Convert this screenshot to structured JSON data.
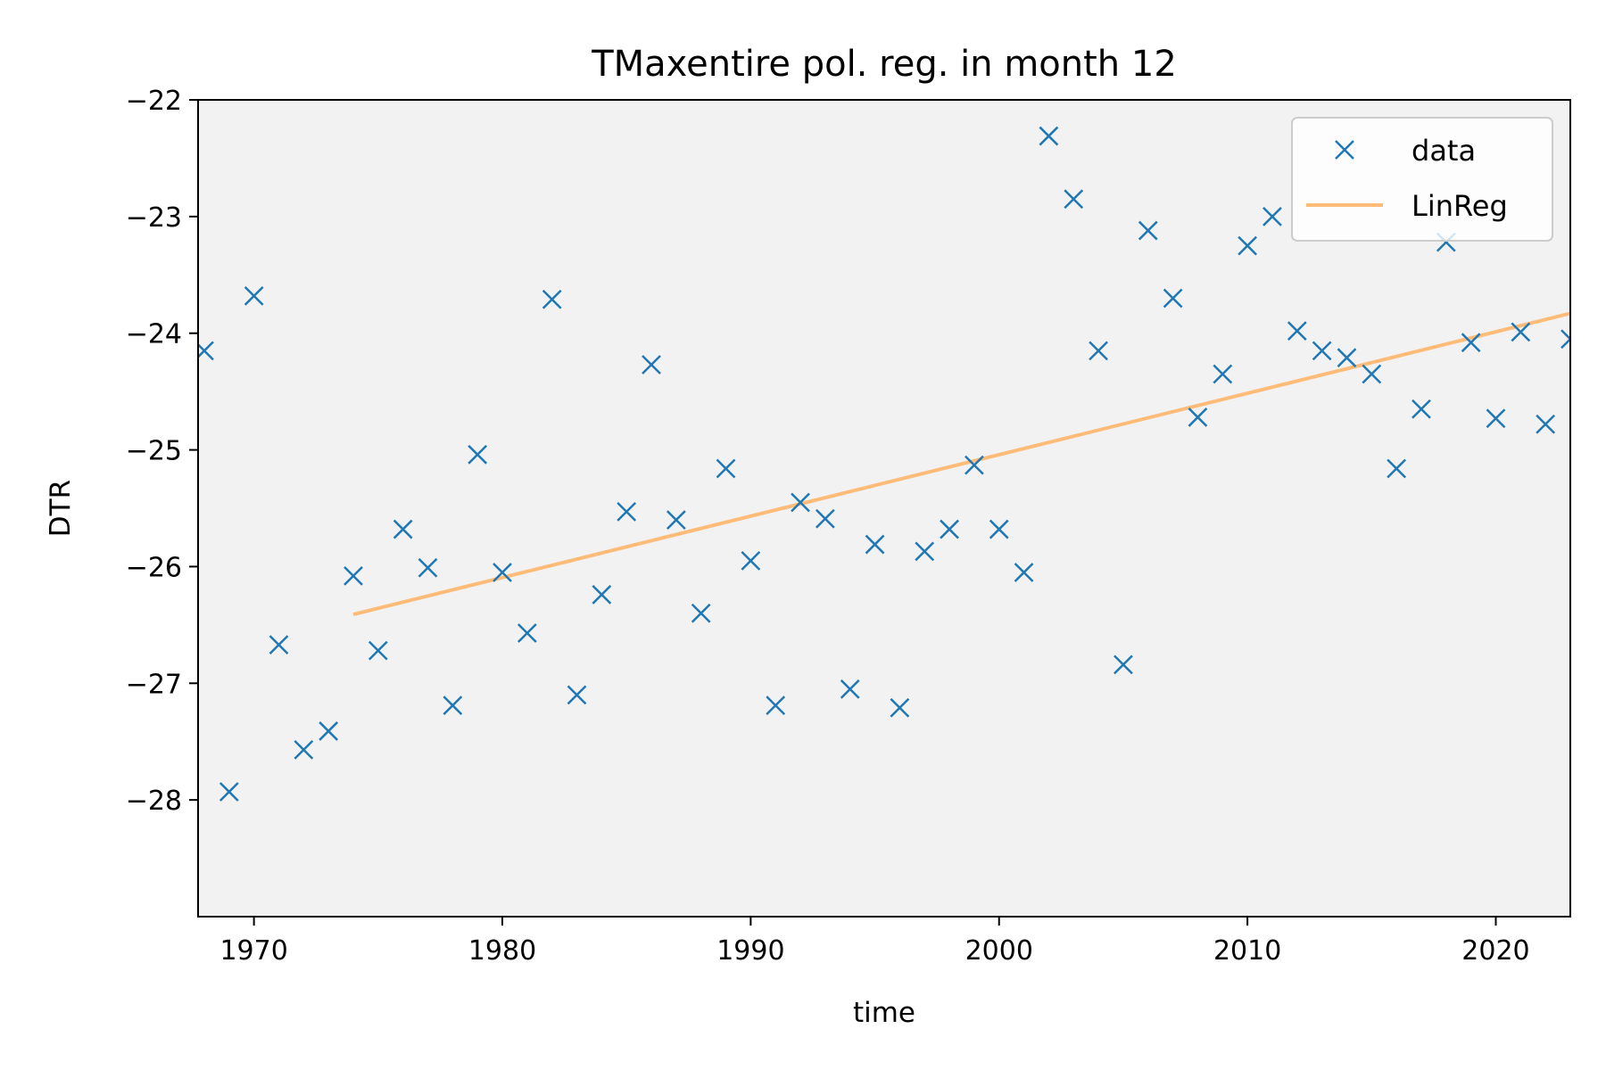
{
  "chart_data": {
    "type": "scatter",
    "title": "TMaxentire pol. reg. in month 12",
    "xlabel": "time",
    "ylabel": "DTR",
    "xlim": [
      1967.75,
      2023
    ],
    "ylim": [
      -29,
      -22
    ],
    "xticks": [
      1970,
      1980,
      1990,
      2000,
      2010,
      2020
    ],
    "yticks": [
      -28,
      -27,
      -26,
      -25,
      -24,
      -23,
      -22
    ],
    "ytick_labels": [
      "−28",
      "−27",
      "−26",
      "−25",
      "−24",
      "−23",
      "−22"
    ],
    "background": "#f2f2f2",
    "legend_position": "top-right",
    "series": [
      {
        "name": "data",
        "marker": "x",
        "color": "#1f77b4",
        "points": [
          [
            1968,
            -24.15
          ],
          [
            1969,
            -27.93
          ],
          [
            1970,
            -23.68
          ],
          [
            1971,
            -26.67
          ],
          [
            1972,
            -27.57
          ],
          [
            1973,
            -27.41
          ],
          [
            1974,
            -26.08
          ],
          [
            1975,
            -26.72
          ],
          [
            1976,
            -25.68
          ],
          [
            1977,
            -26.01
          ],
          [
            1978,
            -27.19
          ],
          [
            1979,
            -25.04
          ],
          [
            1980,
            -26.05
          ],
          [
            1981,
            -26.57
          ],
          [
            1982,
            -23.71
          ],
          [
            1983,
            -27.1
          ],
          [
            1984,
            -26.24
          ],
          [
            1985,
            -25.53
          ],
          [
            1986,
            -24.27
          ],
          [
            1987,
            -25.6
          ],
          [
            1988,
            -26.4
          ],
          [
            1989,
            -25.16
          ],
          [
            1990,
            -25.95
          ],
          [
            1991,
            -27.19
          ],
          [
            1992,
            -25.45
          ],
          [
            1993,
            -25.59
          ],
          [
            1994,
            -27.05
          ],
          [
            1995,
            -25.81
          ],
          [
            1996,
            -27.21
          ],
          [
            1997,
            -25.87
          ],
          [
            1998,
            -25.68
          ],
          [
            1999,
            -25.13
          ],
          [
            2000,
            -25.68
          ],
          [
            2001,
            -26.05
          ],
          [
            2002,
            -22.31
          ],
          [
            2003,
            -22.85
          ],
          [
            2004,
            -24.15
          ],
          [
            2005,
            -26.84
          ],
          [
            2006,
            -23.12
          ],
          [
            2007,
            -23.7
          ],
          [
            2008,
            -24.72
          ],
          [
            2009,
            -24.35
          ],
          [
            2010,
            -23.25
          ],
          [
            2011,
            -23.0
          ],
          [
            2012,
            -23.98
          ],
          [
            2013,
            -24.15
          ],
          [
            2014,
            -24.21
          ],
          [
            2015,
            -24.35
          ],
          [
            2016,
            -25.16
          ],
          [
            2017,
            -24.65
          ],
          [
            2018,
            -23.22
          ],
          [
            2019,
            -24.08
          ],
          [
            2020,
            -24.73
          ],
          [
            2021,
            -23.99
          ],
          [
            2022,
            -24.78
          ],
          [
            2023,
            -24.05
          ]
        ]
      },
      {
        "name": "LinReg",
        "marker": "line",
        "color": "#ffbb78",
        "points": [
          [
            1974,
            -26.41
          ],
          [
            2023,
            -23.83
          ]
        ]
      }
    ]
  }
}
